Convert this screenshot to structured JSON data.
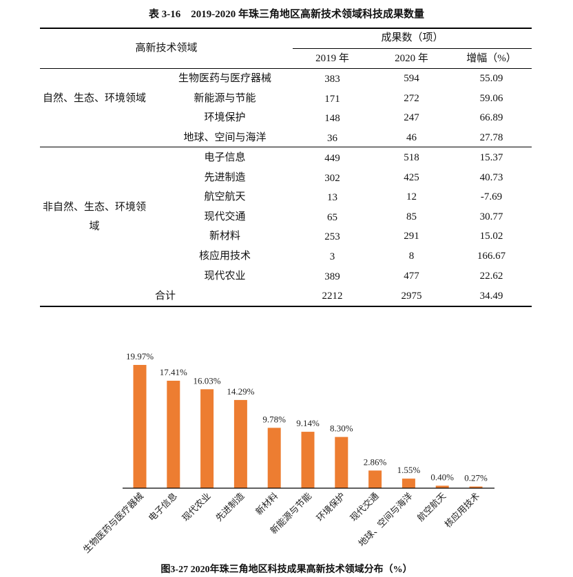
{
  "table": {
    "title": "表 3-16　2019-2020 年珠三角地区高新技术领域科技成果数量",
    "header": {
      "area": "高新技术领域",
      "count_group": "成果数（项）",
      "y2019": "2019 年",
      "y2020": "2020 年",
      "growth": "增幅（%）"
    },
    "groups": [
      {
        "label": "自然、生态、环境领域",
        "rows": [
          {
            "area": "生物医药与医疗器械",
            "y2019": "383",
            "y2020": "594",
            "growth": "55.09"
          },
          {
            "area": "新能源与节能",
            "y2019": "171",
            "y2020": "272",
            "growth": "59.06"
          },
          {
            "area": "环境保护",
            "y2019": "148",
            "y2020": "247",
            "growth": "66.89"
          },
          {
            "area": "地球、空间与海洋",
            "y2019": "36",
            "y2020": "46",
            "growth": "27.78"
          }
        ]
      },
      {
        "label": "非自然、生态、环境领域",
        "rows": [
          {
            "area": "电子信息",
            "y2019": "449",
            "y2020": "518",
            "growth": "15.37"
          },
          {
            "area": "先进制造",
            "y2019": "302",
            "y2020": "425",
            "growth": "40.73"
          },
          {
            "area": "航空航天",
            "y2019": "13",
            "y2020": "12",
            "growth": "-7.69"
          },
          {
            "area": "现代交通",
            "y2019": "65",
            "y2020": "85",
            "growth": "30.77"
          },
          {
            "area": "新材料",
            "y2019": "253",
            "y2020": "291",
            "growth": "15.02"
          },
          {
            "area": "核应用技术",
            "y2019": "3",
            "y2020": "8",
            "growth": "166.67"
          },
          {
            "area": "现代农业",
            "y2019": "389",
            "y2020": "477",
            "growth": "22.62"
          }
        ]
      }
    ],
    "total": {
      "label": "合计",
      "y2019": "2212",
      "y2020": "2975",
      "growth": "34.49"
    }
  },
  "chart_data": {
    "type": "bar",
    "title": "图3-27  2020年珠三角地区科技成果高新技术领域分布（%）",
    "categories": [
      "生物医药与医疗器械",
      "电子信息",
      "现代农业",
      "先进制造",
      "新材料",
      "新能源与节能",
      "环境保护",
      "现代交通",
      "地球、空间与海洋",
      "航空航天",
      "核应用技术"
    ],
    "values": [
      19.97,
      17.41,
      16.03,
      14.29,
      9.78,
      9.14,
      8.3,
      2.86,
      1.55,
      0.4,
      0.27
    ],
    "labels": [
      "19.97%",
      "17.41%",
      "16.03%",
      "14.29%",
      "9.78%",
      "9.14%",
      "8.30%",
      "2.86%",
      "1.55%",
      "0.40%",
      "0.27%"
    ],
    "ylim": [
      0,
      20
    ],
    "xlabel": "",
    "ylabel": "",
    "grid": false,
    "color": "#ED7D31"
  }
}
